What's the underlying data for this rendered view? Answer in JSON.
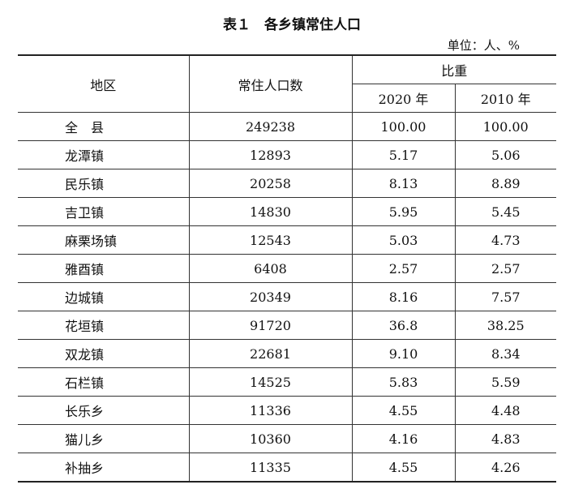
{
  "header": {
    "title": "表１　各乡镇常住人口",
    "unit": "单位：人、%"
  },
  "table": {
    "columns": {
      "region": "地区",
      "population": "常住人口数",
      "share": "比重",
      "y2020": "2020 年",
      "y2010": "2010 年"
    },
    "rows": [
      [
        "全　县",
        "249238",
        "100.00",
        "100.00"
      ],
      [
        "龙潭镇",
        "12893",
        "5.17",
        "5.06"
      ],
      [
        "民乐镇",
        "20258",
        "8.13",
        "8.89"
      ],
      [
        "吉卫镇",
        "14830",
        "5.95",
        "5.45"
      ],
      [
        "麻栗场镇",
        "12543",
        "5.03",
        "4.73"
      ],
      [
        "雅酉镇",
        "6408",
        "2.57",
        "2.57"
      ],
      [
        "边城镇",
        "20349",
        "8.16",
        "7.57"
      ],
      [
        "花垣镇",
        "91720",
        "36.8",
        "38.25"
      ],
      [
        "双龙镇",
        "22681",
        "9.10",
        "8.34"
      ],
      [
        "石栏镇",
        "14525",
        "5.83",
        "5.59"
      ],
      [
        "长乐乡",
        "11336",
        "4.55",
        "4.48"
      ],
      [
        "猫儿乡",
        "10360",
        "4.16",
        "4.83"
      ],
      [
        "补抽乡",
        "11335",
        "4.55",
        "4.26"
      ]
    ]
  }
}
